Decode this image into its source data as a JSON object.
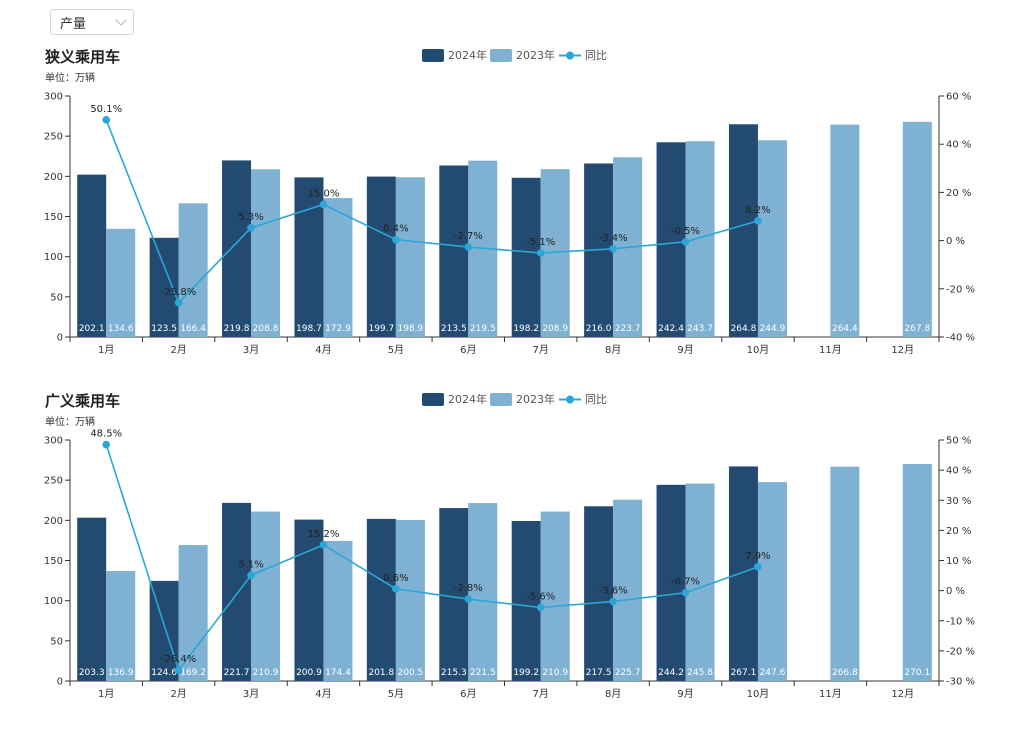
{
  "filter": {
    "selected": "产量",
    "icon": "chevron-down-icon"
  },
  "colors": {
    "y2024": "#234a70",
    "y2023": "#7fb1d3",
    "yoy": "#2aa7d8",
    "axis": "#333333"
  },
  "legend": {
    "y2024": "2024年",
    "y2023": "2023年",
    "yoy": "同比"
  },
  "chart_data": [
    {
      "type": "bar",
      "title": "狭义乘用车",
      "unit_label": "单位：万辆",
      "categories": [
        "1月",
        "2月",
        "3月",
        "4月",
        "5月",
        "6月",
        "7月",
        "8月",
        "9月",
        "10月",
        "11月",
        "12月"
      ],
      "series": [
        {
          "name": "2024年",
          "values": [
            202.1,
            123.5,
            219.8,
            198.7,
            199.7,
            213.5,
            198.2,
            216.0,
            242.4,
            264.8,
            null,
            null
          ],
          "labels": [
            "202.1",
            "123.5",
            "219.8",
            "198.7",
            "199.7",
            "213.5",
            "198.2",
            "216.0",
            "242.4",
            "264.8",
            "",
            ""
          ]
        },
        {
          "name": "2023年",
          "values": [
            134.6,
            166.4,
            208.8,
            172.9,
            198.9,
            219.5,
            208.9,
            223.7,
            243.7,
            244.9,
            264.4,
            267.8
          ],
          "labels": [
            "134.6",
            "166.4",
            "208.8",
            "172.9",
            "198.9",
            "219.5",
            "208.9",
            "223.7",
            "243.7",
            "244.9",
            "264.4",
            "267.8"
          ]
        },
        {
          "name": "同比",
          "type": "line",
          "values": [
            50.1,
            -25.8,
            5.3,
            15.0,
            0.4,
            -2.7,
            -5.1,
            -3.4,
            -0.5,
            8.2,
            null,
            null
          ],
          "labels": [
            "50.1%",
            "-25.8%",
            "5.3%",
            "15.0%",
            "0.4%",
            "-2.7%",
            "-5.1%",
            "-3.4%",
            "-0.5%",
            "8.2%",
            "",
            ""
          ]
        }
      ],
      "ylim": [
        0,
        300
      ],
      "yticks": [
        "0",
        "50",
        "100",
        "150",
        "200",
        "250",
        "300"
      ],
      "y2lim": [
        -40,
        60
      ],
      "y2ticks": [
        "-40 %",
        "-20 %",
        "0 %",
        "20 %",
        "40 %",
        "60 %"
      ],
      "legend_position": "top-center",
      "grid": false
    },
    {
      "type": "bar",
      "title": "广义乘用车",
      "unit_label": "单位：万辆",
      "categories": [
        "1月",
        "2月",
        "3月",
        "4月",
        "5月",
        "6月",
        "7月",
        "8月",
        "9月",
        "10月",
        "11月",
        "12月"
      ],
      "series": [
        {
          "name": "2024年",
          "values": [
            203.3,
            124.6,
            221.7,
            200.9,
            201.8,
            215.3,
            199.2,
            217.5,
            244.2,
            267.1,
            null,
            null
          ],
          "labels": [
            "203.3",
            "124.6",
            "221.7",
            "200.9",
            "201.8",
            "215.3",
            "199.2",
            "217.5",
            "244.2",
            "267.1",
            "",
            ""
          ]
        },
        {
          "name": "2023年",
          "values": [
            136.9,
            169.2,
            210.9,
            174.4,
            200.5,
            221.5,
            210.9,
            225.7,
            245.8,
            247.6,
            266.8,
            270.1
          ],
          "labels": [
            "136.9",
            "169.2",
            "210.9",
            "174.4",
            "200.5",
            "221.5",
            "210.9",
            "225.7",
            "245.8",
            "247.6",
            "266.8",
            "270.1"
          ]
        },
        {
          "name": "同比",
          "type": "line",
          "values": [
            48.5,
            -26.4,
            5.1,
            15.2,
            0.6,
            -2.8,
            -5.6,
            -3.6,
            -0.7,
            7.9,
            null,
            null
          ],
          "labels": [
            "48.5%",
            "-26.4%",
            "5.1%",
            "15.2%",
            "0.6%",
            "-2.8%",
            "-5.6%",
            "-3.6%",
            "-0.7%",
            "7.9%",
            "",
            ""
          ]
        }
      ],
      "ylim": [
        0,
        300
      ],
      "yticks": [
        "0",
        "50",
        "100",
        "150",
        "200",
        "250",
        "300"
      ],
      "y2lim": [
        -30,
        50
      ],
      "y2ticks": [
        "-30 %",
        "-20 %",
        "-10 %",
        "0 %",
        "10 %",
        "20 %",
        "30 %",
        "40 %",
        "50 %"
      ],
      "legend_position": "top-center",
      "grid": false
    }
  ]
}
